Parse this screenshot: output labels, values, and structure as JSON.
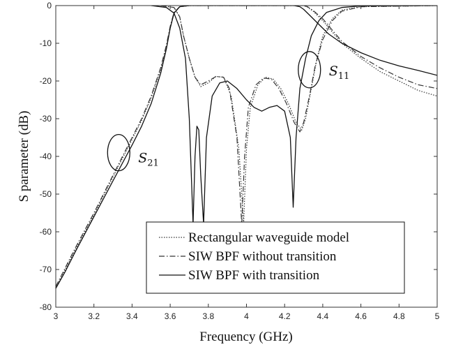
{
  "chart_data": {
    "type": "line",
    "title": "",
    "xlabel": "Frequency (GHz)",
    "ylabel": "S parameter (dB)",
    "xlim": [
      3,
      5
    ],
    "ylim": [
      -80,
      0
    ],
    "xticks": [
      3,
      3.2,
      3.4,
      3.6,
      3.8,
      4,
      4.2,
      4.4,
      4.6,
      4.8,
      5
    ],
    "xtick_labels": [
      "3",
      "3.2",
      "3.4",
      "3.6",
      "3.8",
      "4",
      "4.2",
      "4.4",
      "4.6",
      "4.8",
      "5"
    ],
    "yticks": [
      0,
      -10,
      -20,
      -30,
      -40,
      -50,
      -60,
      -70,
      -80
    ],
    "ytick_labels": [
      "0",
      "-10",
      "-20",
      "-30",
      "-40",
      "-50",
      "-60",
      "-70",
      "-80"
    ],
    "grid": false,
    "legend_position": "bottom-right",
    "series": [
      {
        "name": "Rectangular waveguide model",
        "style": "dotted",
        "color": "#333333",
        "s21": [
          [
            3.0,
            -75
          ],
          [
            3.05,
            -70
          ],
          [
            3.1,
            -65
          ],
          [
            3.2,
            -55.5
          ],
          [
            3.3,
            -45.5
          ],
          [
            3.4,
            -35.5
          ],
          [
            3.45,
            -30.5
          ],
          [
            3.5,
            -24.5
          ],
          [
            3.55,
            -17
          ],
          [
            3.58,
            -11
          ],
          [
            3.6,
            -6
          ],
          [
            3.62,
            -2
          ],
          [
            3.65,
            -0.3
          ],
          [
            3.7,
            0
          ],
          [
            4.3,
            0
          ],
          [
            4.32,
            -0.4
          ],
          [
            4.35,
            -1.5
          ],
          [
            4.4,
            -4
          ],
          [
            4.45,
            -7
          ],
          [
            4.5,
            -10
          ],
          [
            4.6,
            -14
          ],
          [
            4.7,
            -17.5
          ],
          [
            4.8,
            -20
          ],
          [
            4.9,
            -22.5
          ],
          [
            5.0,
            -24
          ]
        ],
        "s11": [
          [
            3.55,
            0
          ],
          [
            3.62,
            -0.5
          ],
          [
            3.65,
            -3
          ],
          [
            3.67,
            -8
          ],
          [
            3.7,
            -14
          ],
          [
            3.73,
            -19
          ],
          [
            3.76,
            -21.5
          ],
          [
            3.8,
            -20.5
          ],
          [
            3.84,
            -18.8
          ],
          [
            3.88,
            -19
          ],
          [
            3.92,
            -24
          ],
          [
            3.96,
            -38
          ],
          [
            3.985,
            -58
          ],
          [
            4.0,
            -38
          ],
          [
            4.02,
            -27
          ],
          [
            4.06,
            -21
          ],
          [
            4.1,
            -19
          ],
          [
            4.14,
            -19.5
          ],
          [
            4.18,
            -22
          ],
          [
            4.22,
            -26
          ],
          [
            4.26,
            -31
          ],
          [
            4.29,
            -33
          ],
          [
            4.31,
            -30
          ],
          [
            4.34,
            -22
          ],
          [
            4.37,
            -14
          ],
          [
            4.4,
            -8
          ],
          [
            4.45,
            -3.5
          ],
          [
            4.5,
            -1.2
          ],
          [
            4.6,
            -0.3
          ],
          [
            5.0,
            0
          ]
        ]
      },
      {
        "name": "SIW BPF without transition",
        "style": "dashdot",
        "color": "#333333",
        "s21": [
          [
            3.0,
            -74.5
          ],
          [
            3.05,
            -69.5
          ],
          [
            3.1,
            -64.5
          ],
          [
            3.2,
            -55
          ],
          [
            3.3,
            -45
          ],
          [
            3.4,
            -35
          ],
          [
            3.45,
            -30
          ],
          [
            3.5,
            -24
          ],
          [
            3.55,
            -16.5
          ],
          [
            3.58,
            -10.5
          ],
          [
            3.6,
            -5.5
          ],
          [
            3.62,
            -1.8
          ],
          [
            3.65,
            -0.3
          ],
          [
            3.7,
            0
          ],
          [
            4.3,
            0
          ],
          [
            4.32,
            -0.3
          ],
          [
            4.35,
            -1.3
          ],
          [
            4.4,
            -3.5
          ],
          [
            4.45,
            -6.5
          ],
          [
            4.5,
            -9.5
          ],
          [
            4.6,
            -13.5
          ],
          [
            4.7,
            -16.5
          ],
          [
            4.8,
            -19
          ],
          [
            4.9,
            -21
          ],
          [
            5.0,
            -22
          ]
        ],
        "s11": [
          [
            3.55,
            0
          ],
          [
            3.62,
            -0.5
          ],
          [
            3.65,
            -3
          ],
          [
            3.67,
            -8
          ],
          [
            3.7,
            -14
          ],
          [
            3.73,
            -19
          ],
          [
            3.76,
            -21
          ],
          [
            3.8,
            -20
          ],
          [
            3.84,
            -18.8
          ],
          [
            3.88,
            -19
          ],
          [
            3.91,
            -22
          ],
          [
            3.95,
            -35
          ],
          [
            3.975,
            -58
          ],
          [
            3.99,
            -40
          ],
          [
            4.01,
            -27
          ],
          [
            4.05,
            -21
          ],
          [
            4.09,
            -19.2
          ],
          [
            4.13,
            -19.5
          ],
          [
            4.17,
            -22
          ],
          [
            4.21,
            -26
          ],
          [
            4.25,
            -31
          ],
          [
            4.28,
            -33.5
          ],
          [
            4.3,
            -31
          ],
          [
            4.33,
            -24
          ],
          [
            4.36,
            -16
          ],
          [
            4.4,
            -9
          ],
          [
            4.45,
            -4
          ],
          [
            4.5,
            -1.5
          ],
          [
            4.6,
            -0.3
          ],
          [
            5.0,
            0
          ]
        ]
      },
      {
        "name": "SIW BPF with transition",
        "style": "solid",
        "color": "#111111",
        "s21": [
          [
            3.0,
            -75
          ],
          [
            3.05,
            -70.5
          ],
          [
            3.1,
            -65.5
          ],
          [
            3.2,
            -56
          ],
          [
            3.3,
            -46.5
          ],
          [
            3.4,
            -37
          ],
          [
            3.45,
            -32
          ],
          [
            3.5,
            -26
          ],
          [
            3.55,
            -18
          ],
          [
            3.58,
            -11.5
          ],
          [
            3.6,
            -6
          ],
          [
            3.62,
            -2
          ],
          [
            3.65,
            -0.3
          ],
          [
            3.7,
            0
          ],
          [
            4.25,
            0
          ],
          [
            4.28,
            -0.3
          ],
          [
            4.3,
            -1
          ],
          [
            4.33,
            -2.5
          ],
          [
            4.38,
            -5
          ],
          [
            4.43,
            -7.5
          ],
          [
            4.5,
            -10
          ],
          [
            4.6,
            -12.5
          ],
          [
            4.7,
            -14.5
          ],
          [
            4.8,
            -16
          ],
          [
            4.9,
            -17.2
          ],
          [
            5.0,
            -18.5
          ]
        ],
        "s11": [
          [
            3.5,
            0
          ],
          [
            3.58,
            -0.5
          ],
          [
            3.62,
            -2
          ],
          [
            3.65,
            -6
          ],
          [
            3.68,
            -14
          ],
          [
            3.7,
            -30
          ],
          [
            3.72,
            -58
          ],
          [
            3.73,
            -40
          ],
          [
            3.74,
            -32
          ],
          [
            3.75,
            -33
          ],
          [
            3.76,
            -45
          ],
          [
            3.775,
            -58
          ],
          [
            3.79,
            -35
          ],
          [
            3.82,
            -24
          ],
          [
            3.86,
            -20.5
          ],
          [
            3.9,
            -20
          ],
          [
            3.95,
            -22
          ],
          [
            4.0,
            -25
          ],
          [
            4.04,
            -27
          ],
          [
            4.08,
            -28
          ],
          [
            4.12,
            -27
          ],
          [
            4.16,
            -26.5
          ],
          [
            4.2,
            -28
          ],
          [
            4.23,
            -35
          ],
          [
            4.245,
            -53.5
          ],
          [
            4.26,
            -35
          ],
          [
            4.28,
            -22
          ],
          [
            4.31,
            -14
          ],
          [
            4.34,
            -8
          ],
          [
            4.38,
            -4
          ],
          [
            4.42,
            -1.8
          ],
          [
            4.5,
            -0.5
          ],
          [
            4.6,
            -0.1
          ],
          [
            5.0,
            0
          ]
        ]
      }
    ],
    "annotations": [
      {
        "main": "S",
        "sub": "21",
        "x": 3.33,
        "y": -39
      },
      {
        "main": "S",
        "sub": "11",
        "x": 4.43,
        "y": -19
      }
    ]
  }
}
